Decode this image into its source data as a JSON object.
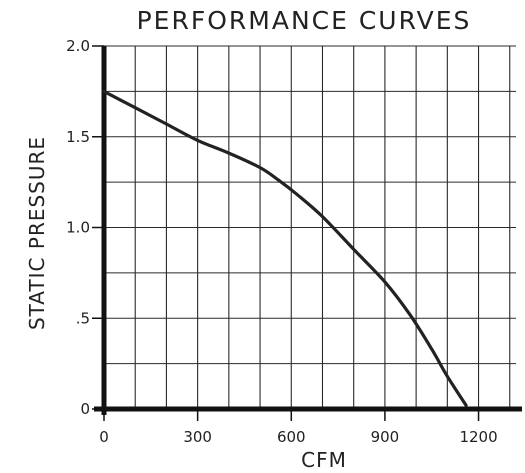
{
  "chart_data": {
    "type": "line",
    "title": "PERFORMANCE CURVES",
    "xlabel": "CFM",
    "ylabel": "STATIC PRESSURE",
    "xlim": [
      0,
      1320
    ],
    "ylim": [
      0,
      2.0
    ],
    "x_ticks": [
      0,
      300,
      600,
      900,
      1200
    ],
    "x_tick_labels": [
      "0",
      "300",
      "600",
      "900",
      "1200"
    ],
    "y_ticks": [
      0,
      0.5,
      1.0,
      1.5,
      2.0
    ],
    "y_tick_labels": [
      "0",
      ".5",
      "1.0",
      "1.5",
      "2.0"
    ],
    "grid": true,
    "series": [
      {
        "x": [
          0,
          100,
          200,
          300,
          400,
          500,
          560,
          620,
          700,
          800,
          900,
          980,
          1050,
          1100,
          1160
        ],
        "y": [
          1.75,
          1.66,
          1.57,
          1.48,
          1.41,
          1.33,
          1.26,
          1.18,
          1.06,
          0.88,
          0.7,
          0.52,
          0.33,
          0.18,
          0.02
        ],
        "color": "#222222"
      }
    ]
  }
}
